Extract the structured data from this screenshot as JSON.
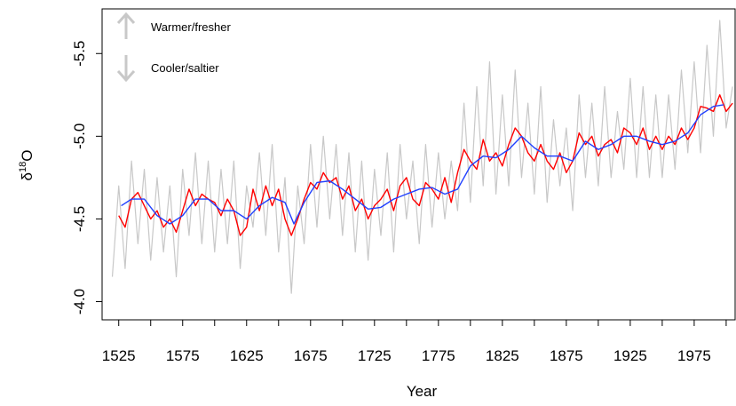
{
  "chart_data": {
    "type": "line",
    "x_label": "Year",
    "y_label": {
      "base": "δ",
      "sup": "18",
      "tail": "O"
    },
    "annotations": [
      "Warmer/fresher",
      "Cooler/saltier"
    ],
    "xlim": [
      1512,
      2007
    ],
    "ylim": [
      -3.89,
      -5.77
    ],
    "xticks": [
      1525,
      1575,
      1625,
      1675,
      1725,
      1775,
      1825,
      1875,
      1925,
      1975
    ],
    "x_minor_ticks": [
      1550,
      1600,
      1650,
      1700,
      1750,
      1800,
      1850,
      1900,
      1950,
      2000
    ],
    "yticks": [
      {
        "value": -5.5,
        "label": "-5.5"
      },
      {
        "value": -5,
        "label": "-5.0"
      },
      -4.5,
      {
        "value": -4,
        "label": "-4.0"
      }
    ],
    "series": [
      {
        "color": "#c8c8c8",
        "x": [
          1520,
          1525,
          1530,
          1535,
          1540,
          1545,
          1550,
          1555,
          1560,
          1565,
          1570,
          1575,
          1580,
          1585,
          1590,
          1595,
          1600,
          1605,
          1610,
          1615,
          1620,
          1625,
          1630,
          1635,
          1640,
          1645,
          1650,
          1655,
          1660,
          1665,
          1670,
          1675,
          1680,
          1685,
          1690,
          1695,
          1700,
          1705,
          1710,
          1715,
          1720,
          1725,
          1730,
          1735,
          1740,
          1745,
          1750,
          1755,
          1760,
          1765,
          1770,
          1775,
          1780,
          1785,
          1790,
          1795,
          1800,
          1805,
          1810,
          1815,
          1820,
          1825,
          1830,
          1835,
          1840,
          1845,
          1850,
          1855,
          1860,
          1865,
          1870,
          1875,
          1880,
          1885,
          1890,
          1895,
          1900,
          1905,
          1910,
          1915,
          1920,
          1925,
          1930,
          1935,
          1940,
          1945,
          1950,
          1955,
          1960,
          1965,
          1970,
          1975,
          1980,
          1985,
          1990,
          1995,
          2000,
          2005
        ],
        "values": [
          -4.15,
          -4.7,
          -4.2,
          -4.85,
          -4.35,
          -4.8,
          -4.25,
          -4.75,
          -4.3,
          -4.7,
          -4.15,
          -4.8,
          -4.4,
          -4.9,
          -4.35,
          -4.85,
          -4.3,
          -4.8,
          -4.35,
          -4.85,
          -4.2,
          -4.7,
          -4.45,
          -4.9,
          -4.4,
          -4.95,
          -4.3,
          -4.75,
          -4.05,
          -4.7,
          -4.35,
          -4.95,
          -4.45,
          -5.0,
          -4.5,
          -4.95,
          -4.4,
          -4.9,
          -4.3,
          -4.85,
          -4.25,
          -4.8,
          -4.4,
          -4.9,
          -4.3,
          -4.95,
          -4.5,
          -4.85,
          -4.35,
          -4.95,
          -4.45,
          -4.9,
          -4.5,
          -4.85,
          -4.55,
          -5.2,
          -4.6,
          -5.3,
          -4.7,
          -5.45,
          -4.65,
          -5.25,
          -4.7,
          -5.4,
          -4.75,
          -5.2,
          -4.65,
          -5.3,
          -4.6,
          -5.1,
          -4.7,
          -5.05,
          -4.55,
          -5.25,
          -4.75,
          -5.2,
          -4.7,
          -5.3,
          -4.75,
          -5.15,
          -4.8,
          -5.35,
          -4.75,
          -5.3,
          -4.75,
          -5.25,
          -4.75,
          -5.25,
          -4.8,
          -5.4,
          -4.9,
          -5.45,
          -4.9,
          -5.55,
          -5.0,
          -5.7,
          -5.05,
          -5.3
        ]
      },
      {
        "color": "#ff0000",
        "x": [
          1525,
          1530,
          1535,
          1540,
          1545,
          1550,
          1555,
          1560,
          1565,
          1570,
          1575,
          1580,
          1585,
          1590,
          1595,
          1600,
          1605,
          1610,
          1615,
          1620,
          1625,
          1630,
          1635,
          1640,
          1645,
          1650,
          1655,
          1660,
          1665,
          1670,
          1675,
          1680,
          1685,
          1690,
          1695,
          1700,
          1705,
          1710,
          1715,
          1720,
          1725,
          1730,
          1735,
          1740,
          1745,
          1750,
          1755,
          1760,
          1765,
          1770,
          1775,
          1780,
          1785,
          1790,
          1795,
          1800,
          1805,
          1810,
          1815,
          1820,
          1825,
          1830,
          1835,
          1840,
          1845,
          1850,
          1855,
          1860,
          1865,
          1870,
          1875,
          1880,
          1885,
          1890,
          1895,
          1900,
          1905,
          1910,
          1915,
          1920,
          1925,
          1930,
          1935,
          1940,
          1945,
          1950,
          1955,
          1960,
          1965,
          1970,
          1975,
          1980,
          1985,
          1990,
          1995,
          2000,
          2005
        ],
        "values": [
          -4.52,
          -4.45,
          -4.62,
          -4.66,
          -4.58,
          -4.5,
          -4.55,
          -4.45,
          -4.5,
          -4.42,
          -4.55,
          -4.68,
          -4.58,
          -4.65,
          -4.62,
          -4.6,
          -4.52,
          -4.62,
          -4.55,
          -4.4,
          -4.45,
          -4.68,
          -4.55,
          -4.7,
          -4.58,
          -4.68,
          -4.5,
          -4.4,
          -4.5,
          -4.62,
          -4.72,
          -4.68,
          -4.78,
          -4.72,
          -4.75,
          -4.62,
          -4.7,
          -4.55,
          -4.62,
          -4.5,
          -4.58,
          -4.62,
          -4.68,
          -4.55,
          -4.7,
          -4.75,
          -4.62,
          -4.58,
          -4.72,
          -4.68,
          -4.62,
          -4.75,
          -4.6,
          -4.78,
          -4.92,
          -4.85,
          -4.8,
          -4.98,
          -4.85,
          -4.9,
          -4.82,
          -4.95,
          -5.05,
          -5.0,
          -4.9,
          -4.85,
          -4.95,
          -4.85,
          -4.8,
          -4.9,
          -4.78,
          -4.85,
          -5.02,
          -4.95,
          -5.0,
          -4.88,
          -4.95,
          -4.98,
          -4.9,
          -5.05,
          -5.02,
          -4.95,
          -5.05,
          -4.92,
          -5.0,
          -4.92,
          -5.0,
          -4.95,
          -5.05,
          -4.98,
          -5.05,
          -5.18,
          -5.17,
          -5.15,
          -5.25,
          -5.15,
          -5.2
        ]
      },
      {
        "color": "#2040ff",
        "x": [
          1527,
          1535,
          1545,
          1555,
          1565,
          1575,
          1585,
          1595,
          1605,
          1615,
          1625,
          1635,
          1645,
          1655,
          1662,
          1670,
          1680,
          1690,
          1700,
          1710,
          1720,
          1730,
          1740,
          1750,
          1760,
          1770,
          1780,
          1790,
          1800,
          1810,
          1820,
          1830,
          1840,
          1850,
          1860,
          1870,
          1880,
          1890,
          1900,
          1910,
          1920,
          1930,
          1940,
          1950,
          1960,
          1970,
          1980,
          1990,
          1998
        ],
        "values": [
          -4.58,
          -4.62,
          -4.62,
          -4.52,
          -4.47,
          -4.52,
          -4.62,
          -4.62,
          -4.55,
          -4.55,
          -4.5,
          -4.58,
          -4.63,
          -4.6,
          -4.47,
          -4.6,
          -4.72,
          -4.73,
          -4.68,
          -4.62,
          -4.56,
          -4.57,
          -4.62,
          -4.65,
          -4.68,
          -4.69,
          -4.65,
          -4.68,
          -4.82,
          -4.88,
          -4.87,
          -4.92,
          -5.0,
          -4.93,
          -4.88,
          -4.88,
          -4.85,
          -4.97,
          -4.92,
          -4.95,
          -5.0,
          -5.0,
          -4.97,
          -4.95,
          -4.97,
          -5.02,
          -5.13,
          -5.18,
          -5.19
        ]
      }
    ]
  }
}
